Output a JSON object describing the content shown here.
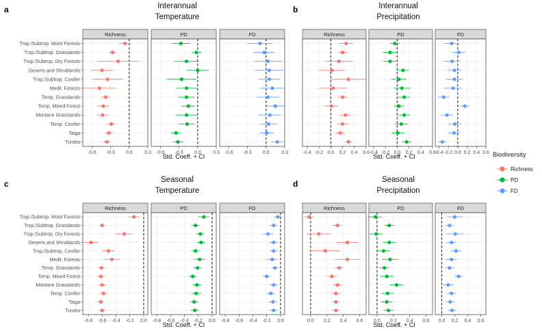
{
  "colors": {
    "Richness": "#F8766D",
    "PD": "#00BA38",
    "FD": "#619CFF",
    "strip": "#d9d9d9",
    "grid": "#ebebeb",
    "panel_border": "#333333",
    "text": "#222222",
    "axis_text": "#4d4d4d"
  },
  "legend": {
    "title": "Biodiversity",
    "items": [
      "Richness",
      "PD",
      "FD"
    ]
  },
  "chart_data": [
    {
      "panel": "a",
      "type": "scatter",
      "title": "Interannual\nTemperature",
      "title_lines": [
        "Interannual",
        "Temperature"
      ],
      "xlabel": "Std. Coeff. + CI",
      "xlim": [
        -0.75,
        0.3
      ],
      "xticks": [
        -0.6,
        -0.3,
        0.0,
        0.3
      ],
      "xtick_labels": [
        "-0.6",
        "-0.3",
        "0.0",
        "0.3"
      ],
      "categories": [
        "Trop./Subtrop. Moist Forests",
        "Trop./Subtrop. Grasslands",
        "Trop./Subtrop. Dry Forests",
        "Deserts and Shrublands",
        "Trop./Subtrop. Conifer",
        "Medit. Forests",
        "Temp. Grasslands",
        "Temp. Mixed Forest",
        "Montane Grasslands",
        "Temp. Conifer",
        "Taiga",
        "Tundra"
      ],
      "series": [
        {
          "name": "Richness",
          "values": [
            -0.07,
            -0.27,
            -0.18,
            -0.44,
            -0.35,
            -0.48,
            -0.38,
            -0.42,
            -0.43,
            -0.29,
            -0.33,
            -0.36
          ],
          "lower": [
            -0.17,
            -0.33,
            -0.52,
            -0.62,
            -0.6,
            -0.75,
            -0.45,
            -0.52,
            -0.52,
            -0.36,
            -0.39,
            -0.42
          ],
          "upper": [
            0.03,
            -0.21,
            0.16,
            -0.26,
            -0.1,
            -0.21,
            -0.31,
            -0.32,
            -0.34,
            -0.22,
            -0.27,
            -0.3
          ]
        },
        {
          "name": "PD",
          "values": [
            -0.27,
            -0.02,
            -0.18,
            0.0,
            -0.26,
            -0.18,
            -0.18,
            -0.15,
            -0.18,
            -0.17,
            -0.35,
            -0.32
          ],
          "lower": [
            -0.42,
            -0.1,
            -0.38,
            -0.18,
            -0.5,
            -0.35,
            -0.31,
            -0.26,
            -0.35,
            -0.3,
            -0.43,
            -0.4
          ],
          "upper": [
            -0.12,
            0.06,
            0.02,
            0.18,
            -0.02,
            -0.01,
            -0.05,
            -0.04,
            -0.01,
            -0.04,
            -0.27,
            -0.24
          ]
        },
        {
          "name": "FD",
          "values": [
            -0.1,
            -0.03,
            0.03,
            0.05,
            0.05,
            0.1,
            0.03,
            0.15,
            0.06,
            0.04,
            0.01,
            0.18
          ],
          "lower": [
            -0.3,
            -0.2,
            -0.2,
            -0.18,
            -0.12,
            -0.1,
            -0.15,
            0.0,
            -0.12,
            -0.1,
            -0.1,
            0.08
          ],
          "upper": [
            0.1,
            0.14,
            0.26,
            0.28,
            0.22,
            0.3,
            0.21,
            0.3,
            0.24,
            0.18,
            0.12,
            0.28
          ]
        }
      ]
    },
    {
      "panel": "b",
      "type": "scatter",
      "title": "Interannual\nPrecipitation",
      "title_lines": [
        "Interannual",
        "Precipitation"
      ],
      "xlabel": "Std. Coeff. + CI",
      "xlim": [
        -0.48,
        0.6
      ],
      "xticks": [
        -0.4,
        -0.2,
        0.0,
        0.2,
        0.4,
        0.6
      ],
      "xtick_labels": [
        "-0.4",
        "-0.2",
        "0.0",
        "0.2",
        "0.4",
        "0.6"
      ],
      "categories": [
        "Trop./Subtrop. Moist Forests",
        "Trop./Subtrop. Grasslands",
        "Trop./Subtrop. Dry Forests",
        "Deserts and Shrublands",
        "Trop./Subtrop. Conifer",
        "Medit. Forests",
        "Temp. Grasslands",
        "Temp. Mixed Forest",
        "Montane Grasslands",
        "Temp. Conifer",
        "Taiga",
        "Tundra"
      ],
      "series": [
        {
          "name": "Richness",
          "values": [
            0.26,
            0.2,
            0.14,
            0.02,
            0.3,
            0.04,
            0.2,
            0.01,
            0.25,
            0.2,
            0.16,
            0.3
          ],
          "lower": [
            0.14,
            0.12,
            -0.1,
            -0.2,
            0.0,
            -0.2,
            0.12,
            -0.1,
            0.15,
            0.1,
            0.08,
            0.24
          ],
          "upper": [
            0.38,
            0.28,
            0.38,
            0.24,
            0.6,
            0.28,
            0.28,
            0.12,
            0.35,
            0.3,
            0.24,
            0.36
          ]
        },
        {
          "name": "PD",
          "values": [
            -0.04,
            -0.12,
            -0.12,
            0.1,
            0.03,
            0.08,
            0.12,
            0.03,
            0.12,
            0.07,
            0.01,
            0.16
          ],
          "lower": [
            -0.12,
            -0.24,
            -0.24,
            0.0,
            -0.1,
            -0.06,
            0.02,
            -0.06,
            0.02,
            -0.04,
            -0.1,
            0.08
          ],
          "upper": [
            0.04,
            0.0,
            0.0,
            0.2,
            0.16,
            0.22,
            0.22,
            0.12,
            0.22,
            0.18,
            0.12,
            0.24
          ]
        },
        {
          "name": "FD",
          "values": [
            -0.13,
            0.02,
            -0.12,
            -0.07,
            -0.07,
            -0.1,
            -0.3,
            0.15,
            -0.23,
            -0.06,
            -0.08,
            -0.33
          ],
          "lower": [
            -0.3,
            -0.12,
            -0.3,
            -0.22,
            -0.24,
            -0.3,
            -0.42,
            0.05,
            -0.36,
            -0.2,
            -0.2,
            -0.42
          ],
          "upper": [
            0.04,
            0.16,
            0.06,
            0.08,
            0.1,
            0.1,
            -0.18,
            0.25,
            -0.1,
            0.08,
            0.04,
            -0.24
          ]
        }
      ]
    },
    {
      "panel": "c",
      "type": "scatter",
      "title": "Seasonal\nTemperature",
      "title_lines": [
        "Seasonal",
        "Temperature"
      ],
      "xlabel": "Std. Coeff. + CI",
      "xlim": [
        -0.88,
        0.06
      ],
      "xticks": [
        -0.8,
        -0.6,
        -0.4,
        -0.2,
        0.0
      ],
      "xtick_labels": [
        "-0.8",
        "-0.6",
        "-0.4",
        "-0.2",
        "0.0"
      ],
      "categories": [
        "Trop./Subtrop. Moist Forests",
        "Trop./Subtrop. Grasslands",
        "Trop./Subtrop. Dry Forests",
        "Deserts and Shrublands",
        "Trop./Subtrop. Conifer",
        "Medit. Forests",
        "Temp. Grasslands",
        "Temp. Mixed Forest",
        "Montane Grasslands",
        "Temp. Conifer",
        "Taiga",
        "Tundra"
      ],
      "series": [
        {
          "name": "Richness",
          "values": [
            -0.14,
            -0.6,
            -0.28,
            -0.76,
            -0.51,
            -0.46,
            -0.61,
            -0.62,
            -0.6,
            -0.58,
            -0.62,
            -0.6
          ],
          "lower": [
            -0.22,
            -0.64,
            -0.4,
            -0.86,
            -0.6,
            -0.58,
            -0.66,
            -0.68,
            -0.65,
            -0.64,
            -0.67,
            -0.65
          ],
          "upper": [
            -0.06,
            -0.56,
            -0.16,
            -0.66,
            -0.42,
            -0.34,
            -0.56,
            -0.56,
            -0.55,
            -0.52,
            -0.57,
            -0.55
          ]
        },
        {
          "name": "PD",
          "values": [
            -0.12,
            -0.24,
            -0.17,
            -0.16,
            -0.24,
            -0.18,
            -0.21,
            -0.28,
            -0.22,
            -0.23,
            -0.26,
            -0.25
          ],
          "lower": [
            -0.2,
            -0.3,
            -0.23,
            -0.22,
            -0.3,
            -0.26,
            -0.27,
            -0.34,
            -0.28,
            -0.3,
            -0.32,
            -0.31
          ],
          "upper": [
            -0.04,
            -0.18,
            -0.11,
            -0.1,
            -0.18,
            -0.1,
            -0.15,
            -0.22,
            -0.16,
            -0.16,
            -0.2,
            -0.19
          ]
        },
        {
          "name": "FD",
          "values": [
            -0.04,
            -0.1,
            -0.18,
            -0.1,
            -0.1,
            -0.12,
            -0.08,
            -0.2,
            -0.1,
            -0.14,
            -0.11,
            -0.1
          ],
          "lower": [
            -0.1,
            -0.16,
            -0.26,
            -0.16,
            -0.16,
            -0.2,
            -0.13,
            -0.26,
            -0.16,
            -0.2,
            -0.17,
            -0.16
          ],
          "upper": [
            0.02,
            -0.04,
            -0.1,
            -0.04,
            -0.04,
            -0.04,
            -0.03,
            -0.14,
            -0.04,
            -0.08,
            -0.05,
            -0.04
          ]
        }
      ]
    },
    {
      "panel": "d",
      "type": "scatter",
      "title": "Seasonal\nPrecipitation",
      "title_lines": [
        "Seasonal",
        "Precipitation"
      ],
      "xlabel": "Std. Coeff. + CI",
      "xlim": [
        -0.1,
        0.68
      ],
      "xticks": [
        0.0,
        0.2,
        0.4,
        0.6
      ],
      "xtick_labels": [
        "0.0",
        "0.2",
        "0.4",
        "0.6"
      ],
      "categories": [
        "Trop./Subtrop. Moist Forests",
        "Trop./Subtrop. Grasslands",
        "Trop./Subtrop. Dry Forests",
        "Deserts and Shrublands",
        "Trop./Subtrop. Conifer",
        "Medit. Forests",
        "Temp. Grasslands",
        "Temp. Mixed Forest",
        "Montane Grasslands",
        "Temp. Conifer",
        "Taiga",
        "Tundra"
      ],
      "series": [
        {
          "name": "Richness",
          "values": [
            -0.02,
            0.33,
            0.1,
            0.45,
            0.18,
            0.45,
            0.35,
            0.26,
            0.33,
            0.31,
            0.31,
            0.31
          ],
          "lower": [
            -0.08,
            0.27,
            -0.05,
            0.32,
            0.0,
            0.3,
            0.3,
            0.2,
            0.28,
            0.25,
            0.26,
            0.26
          ],
          "upper": [
            0.04,
            0.39,
            0.25,
            0.58,
            0.36,
            0.6,
            0.4,
            0.32,
            0.38,
            0.37,
            0.36,
            0.36
          ]
        },
        {
          "name": "PD",
          "values": [
            -0.02,
            0.15,
            -0.01,
            0.15,
            0.08,
            0.16,
            0.09,
            0.12,
            0.24,
            0.13,
            0.12,
            0.14
          ],
          "lower": [
            -0.1,
            0.09,
            -0.09,
            0.07,
            0.0,
            0.06,
            0.03,
            0.04,
            0.16,
            0.05,
            0.05,
            0.08
          ],
          "upper": [
            0.06,
            0.21,
            0.07,
            0.23,
            0.16,
            0.26,
            0.15,
            0.2,
            0.32,
            0.21,
            0.19,
            0.2
          ]
        },
        {
          "name": "FD",
          "values": [
            0.2,
            0.12,
            0.21,
            0.15,
            0.22,
            0.15,
            0.12,
            0.26,
            0.1,
            0.15,
            0.13,
            0.16
          ],
          "lower": [
            0.08,
            0.06,
            0.08,
            0.08,
            0.14,
            0.06,
            0.05,
            0.2,
            0.02,
            0.08,
            0.06,
            0.1
          ],
          "upper": [
            0.32,
            0.18,
            0.34,
            0.22,
            0.3,
            0.24,
            0.19,
            0.32,
            0.18,
            0.22,
            0.2,
            0.22
          ]
        }
      ]
    }
  ]
}
